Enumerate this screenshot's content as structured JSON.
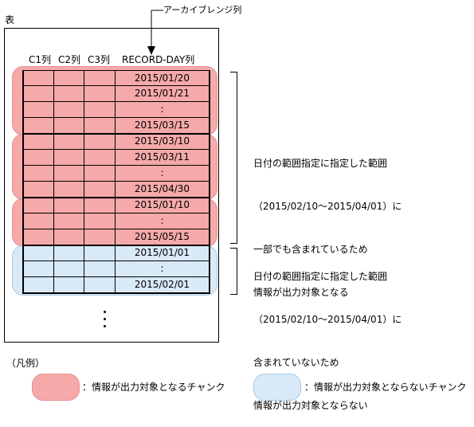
{
  "table_label": "表",
  "archive_label": "アーカイブレンジ列",
  "columns": [
    "C1列",
    "C2列",
    "C3列",
    "RECORD-DAY列"
  ],
  "rows": [
    "2015/01/20",
    "2015/01/21",
    ":",
    "2015/03/15",
    "2015/03/10",
    "2015/03/11",
    ":",
    "2015/04/30",
    "2015/01/10",
    ":",
    "2015/05/15",
    "2015/01/01",
    ":",
    "2015/02/01"
  ],
  "note_included": {
    "line1": "日付の範囲指定に指定した範囲",
    "line2": "（2015/02/10～2015/04/01）に",
    "line3": "一部でも含まれているため",
    "line4": "情報が出力対象となる"
  },
  "note_excluded": {
    "line1": "日付の範囲指定に指定した範囲",
    "line2": "（2015/02/10～2015/04/01）に",
    "line3": "含まれていないため",
    "line4": "情報が出力対象とならない"
  },
  "legend": {
    "title": "（凡例）",
    "included": "：情報が出力対象となるチャンク",
    "excluded": "：情報が出力対象とならないチャンク"
  },
  "colors": {
    "included_fill": "#f5a9a9",
    "excluded_fill": "#d8e9f8"
  }
}
